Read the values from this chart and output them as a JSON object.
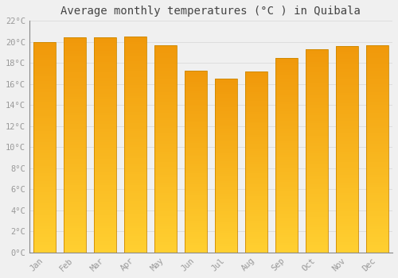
{
  "title": "Average monthly temperatures (°C ) in Quibala",
  "months": [
    "Jan",
    "Feb",
    "Mar",
    "Apr",
    "May",
    "Jun",
    "Jul",
    "Aug",
    "Sep",
    "Oct",
    "Nov",
    "Dec"
  ],
  "values": [
    20.0,
    20.4,
    20.4,
    20.5,
    19.7,
    17.3,
    16.5,
    17.2,
    18.5,
    19.3,
    19.6,
    19.7
  ],
  "bar_color_top": "#F0980A",
  "bar_color_bottom": "#FFCF30",
  "bar_edge_color": "#CC8800",
  "background_color": "#F0F0F0",
  "grid_color": "#DDDDDD",
  "ylim": [
    0,
    22
  ],
  "yticks": [
    0,
    2,
    4,
    6,
    8,
    10,
    12,
    14,
    16,
    18,
    20,
    22
  ],
  "title_fontsize": 10,
  "tick_fontsize": 7.5,
  "tick_color": "#999999",
  "title_color": "#444444",
  "bar_width": 0.72,
  "n_gradient_segments": 80
}
